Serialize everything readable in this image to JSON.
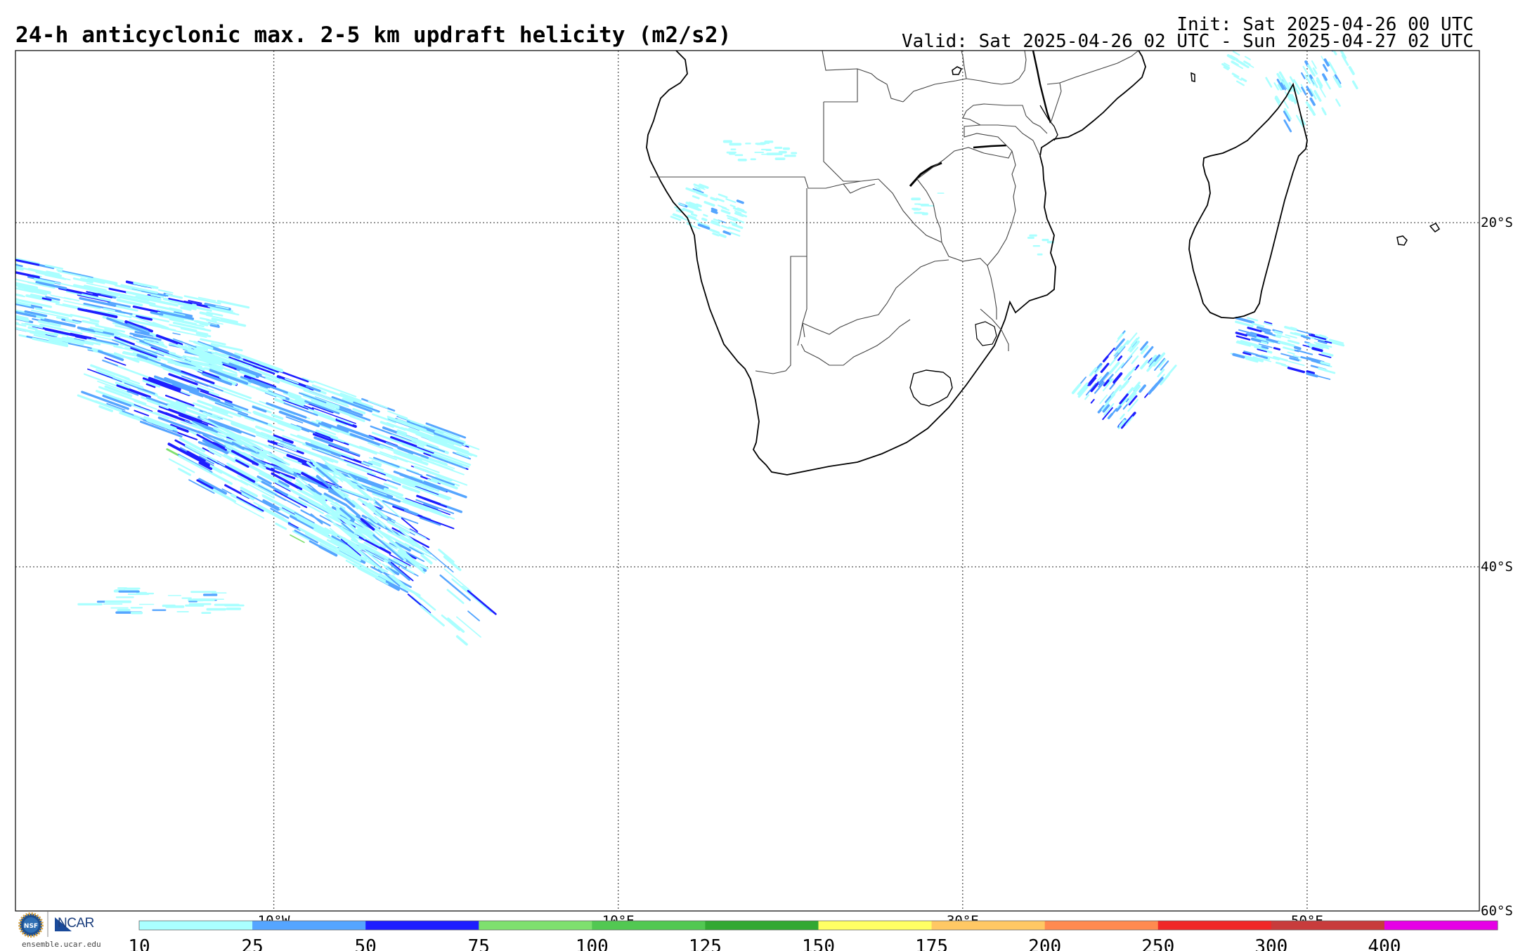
{
  "header": {
    "title": "24-h anticyclonic max. 2-5 km updraft helicity (m2/s2)",
    "init": "Init: Sat 2025-04-26 00 UTC",
    "valid": "Valid: Sat 2025-04-26 02 UTC - Sun 2025-04-27 02 UTC"
  },
  "map": {
    "projection": "lat-lon",
    "lon_range": [
      -25,
      60
    ],
    "lat_range": [
      -60,
      -10
    ],
    "graticule": {
      "lon_labels": [
        "10°W",
        "10°E",
        "30°E",
        "50°E"
      ],
      "lat_labels": [
        "20°S",
        "40°S",
        "60°S"
      ]
    },
    "regions": [
      {
        "name": "southern-africa"
      },
      {
        "name": "madagascar"
      },
      {
        "name": "mauritius"
      },
      {
        "name": "reunion"
      },
      {
        "name": "comoros"
      },
      {
        "name": "lesotho"
      },
      {
        "name": "eswatini"
      },
      {
        "name": "lake-malawi"
      },
      {
        "name": "lake-kariba"
      }
    ],
    "helicity_areas": [
      {
        "name": "south-atlantic-streaks"
      },
      {
        "name": "mozambique-channel-cluster"
      },
      {
        "name": "south-of-madagascar-cluster"
      },
      {
        "name": "northeast-madagascar-cluster"
      },
      {
        "name": "namibia-angola-cluster"
      }
    ]
  },
  "colorbar": {
    "ticks": [
      "10",
      "25",
      "50",
      "75",
      "100",
      "125",
      "150",
      "175",
      "200",
      "250",
      "300",
      "400"
    ],
    "colors": [
      "#aaffff",
      "#55a5ff",
      "#1e1eff",
      "#7ee06e",
      "#52c852",
      "#32a832",
      "#ffff64",
      "#ffc864",
      "#ff8a50",
      "#f02828",
      "#c83c3c",
      "#e600e6"
    ]
  },
  "footer": {
    "nsf_logo_text": "NSF",
    "ncar_logo_text": "NCAR",
    "url": "ensemble.ucar.edu"
  }
}
